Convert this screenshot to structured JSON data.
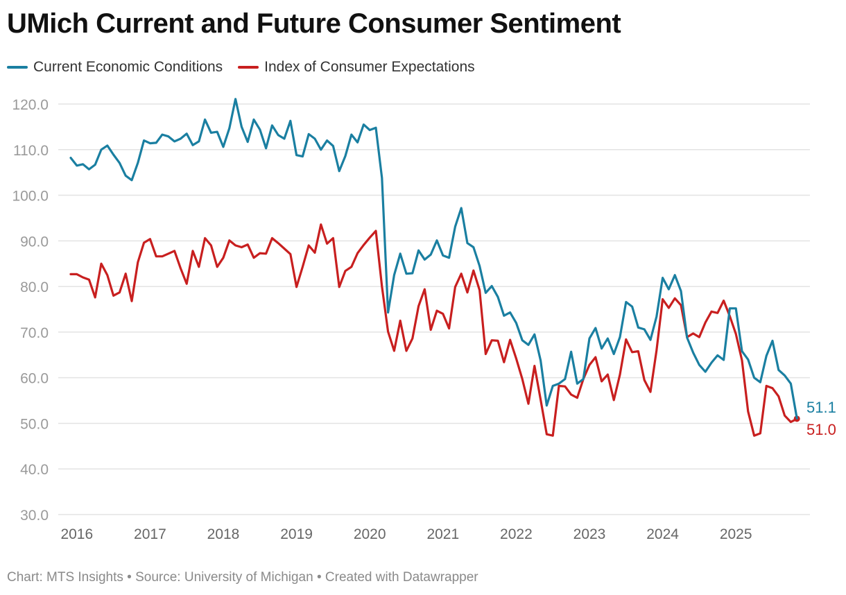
{
  "title": "UMich Current and Future Consumer Sentiment",
  "footer": "Chart: MTS Insights • Source: University of Michigan • Created with Datawrapper",
  "chart_data": {
    "type": "line",
    "title": "UMich Current and Future Consumer Sentiment",
    "xlabel": "",
    "ylabel": "",
    "ylim": [
      30,
      120
    ],
    "yticks": [
      "30.0",
      "40.0",
      "50.0",
      "60.0",
      "70.0",
      "80.0",
      "90.0",
      "100.0",
      "110.0",
      "120.0"
    ],
    "xticks": [
      "2016",
      "2017",
      "2018",
      "2019",
      "2020",
      "2021",
      "2022",
      "2023",
      "2024",
      "2025"
    ],
    "grid": true,
    "legend": "top-left",
    "x": [
      "2015-12",
      "2016-01",
      "2016-02",
      "2016-03",
      "2016-04",
      "2016-05",
      "2016-06",
      "2016-07",
      "2016-08",
      "2016-09",
      "2016-10",
      "2016-11",
      "2016-12",
      "2017-01",
      "2017-02",
      "2017-03",
      "2017-04",
      "2017-05",
      "2017-06",
      "2017-07",
      "2017-08",
      "2017-09",
      "2017-10",
      "2017-11",
      "2017-12",
      "2018-01",
      "2018-02",
      "2018-03",
      "2018-04",
      "2018-05",
      "2018-06",
      "2018-07",
      "2018-08",
      "2018-09",
      "2018-10",
      "2018-11",
      "2018-12",
      "2019-01",
      "2019-02",
      "2019-03",
      "2019-04",
      "2019-05",
      "2019-06",
      "2019-07",
      "2019-08",
      "2019-09",
      "2019-10",
      "2019-11",
      "2019-12",
      "2020-01",
      "2020-02",
      "2020-03",
      "2020-04",
      "2020-05",
      "2020-06",
      "2020-07",
      "2020-08",
      "2020-09",
      "2020-10",
      "2020-11",
      "2020-12",
      "2021-01",
      "2021-02",
      "2021-03",
      "2021-04",
      "2021-05",
      "2021-06",
      "2021-07",
      "2021-08",
      "2021-09",
      "2021-10",
      "2021-11",
      "2021-12",
      "2022-01",
      "2022-02",
      "2022-03",
      "2022-04",
      "2022-05",
      "2022-06",
      "2022-07",
      "2022-08",
      "2022-09",
      "2022-10",
      "2022-11",
      "2022-12",
      "2023-01",
      "2023-02",
      "2023-03",
      "2023-04",
      "2023-05",
      "2023-06",
      "2023-07",
      "2023-08",
      "2023-09",
      "2023-10",
      "2023-11",
      "2023-12",
      "2024-01",
      "2024-02",
      "2024-03",
      "2024-04",
      "2024-05",
      "2024-06",
      "2024-07",
      "2024-08",
      "2024-09",
      "2024-10",
      "2024-11",
      "2024-12",
      "2025-01",
      "2025-02",
      "2025-03",
      "2025-04",
      "2025-05",
      "2025-06",
      "2025-07",
      "2025-08",
      "2025-09",
      "2025-10",
      "2025-11"
    ],
    "series": [
      {
        "name": "Current Economic Conditions",
        "color": "#1a7fa1",
        "end_label": "51.1",
        "values": [
          108.2,
          106.5,
          106.8,
          105.7,
          106.7,
          110.0,
          110.9,
          108.9,
          107.1,
          104.3,
          103.3,
          107.1,
          112.0,
          111.4,
          111.5,
          113.3,
          112.9,
          111.8,
          112.4,
          113.5,
          111.0,
          111.8,
          116.6,
          113.7,
          113.9,
          110.6,
          114.7,
          121.1,
          115.0,
          111.7,
          116.6,
          114.4,
          110.3,
          115.3,
          113.2,
          112.4,
          116.3,
          108.8,
          108.5,
          113.4,
          112.4,
          110.0,
          112.0,
          110.8,
          105.3,
          108.6,
          113.3,
          111.6,
          115.5,
          114.3,
          114.8,
          103.8,
          74.3,
          82.5,
          87.2,
          82.8,
          82.9,
          87.9,
          85.9,
          87.0,
          90.1,
          86.8,
          86.3,
          93.1,
          97.2,
          89.5,
          88.6,
          84.5,
          78.6,
          80.1,
          77.7,
          73.6,
          74.3,
          72.0,
          68.2,
          67.2,
          69.5,
          63.8,
          53.9,
          58.2,
          58.7,
          59.7,
          65.7,
          58.7,
          59.7,
          68.6,
          70.9,
          66.4,
          68.6,
          65.2,
          68.9,
          76.6,
          75.6,
          71.0,
          70.6,
          68.3,
          73.4,
          81.9,
          79.4,
          82.5,
          79.0,
          68.8,
          65.5,
          62.8,
          61.3,
          63.3,
          64.9,
          63.9,
          75.2,
          75.2,
          65.8,
          64.0,
          60.0,
          59.0,
          64.8,
          68.1,
          61.7,
          60.5,
          58.7,
          51.1
        ]
      },
      {
        "name": "Index of Consumer Expectations",
        "color": "#c81f1f",
        "end_label": "51.0",
        "values": [
          82.7,
          82.7,
          82.0,
          81.5,
          77.6,
          85.0,
          82.5,
          78.0,
          78.7,
          82.8,
          76.8,
          85.3,
          89.6,
          90.4,
          86.6,
          86.6,
          87.2,
          87.8,
          84.0,
          80.6,
          87.8,
          84.3,
          90.6,
          89.0,
          84.3,
          86.3,
          90.1,
          89.0,
          88.6,
          89.2,
          86.3,
          87.3,
          87.2,
          90.6,
          89.5,
          88.3,
          87.1,
          79.9,
          84.3,
          89.0,
          87.4,
          93.6,
          89.4,
          90.6,
          79.9,
          83.4,
          84.3,
          87.3,
          89.1,
          90.7,
          92.2,
          80.0,
          70.1,
          65.9,
          72.5,
          65.9,
          68.6,
          75.7,
          79.4,
          70.5,
          74.7,
          74.0,
          70.8,
          79.9,
          82.8,
          78.7,
          83.5,
          79.2,
          65.2,
          68.2,
          68.1,
          63.4,
          68.3,
          64.2,
          59.7,
          54.3,
          62.6,
          55.2,
          47.6,
          47.3,
          58.2,
          58.1,
          56.3,
          55.6,
          59.7,
          62.8,
          64.5,
          59.2,
          60.7,
          55.1,
          60.7,
          68.4,
          65.6,
          65.8,
          59.5,
          56.9,
          66.0,
          77.2,
          75.3,
          77.4,
          75.9,
          68.9,
          69.7,
          68.9,
          72.1,
          74.5,
          74.2,
          76.9,
          73.5,
          69.6,
          63.8,
          52.6,
          47.3,
          47.8,
          58.2,
          57.7,
          55.9,
          51.7,
          50.3,
          51.0
        ]
      }
    ]
  }
}
